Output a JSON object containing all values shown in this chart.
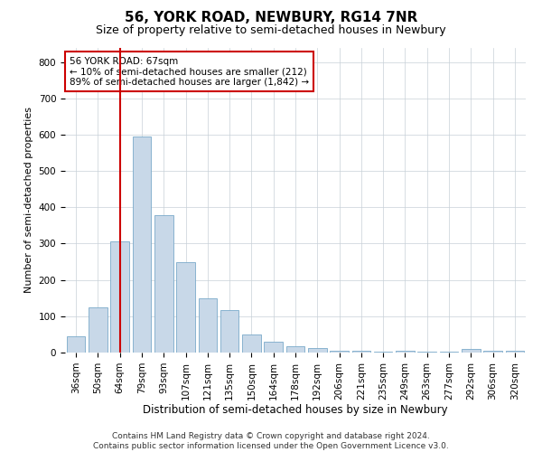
{
  "title": "56, YORK ROAD, NEWBURY, RG14 7NR",
  "subtitle": "Size of property relative to semi-detached houses in Newbury",
  "xlabel": "Distribution of semi-detached houses by size in Newbury",
  "ylabel": "Number of semi-detached properties",
  "footer_line1": "Contains HM Land Registry data © Crown copyright and database right 2024.",
  "footer_line2": "Contains public sector information licensed under the Open Government Licence v3.0.",
  "annotation_title": "56 YORK ROAD: 67sqm",
  "annotation_line1": "← 10% of semi-detached houses are smaller (212)",
  "annotation_line2": "89% of semi-detached houses are larger (1,842) →",
  "property_line_x": 2,
  "bar_color": "#c8d8e8",
  "bar_edge_color": "#7aaaca",
  "property_line_color": "#cc0000",
  "annotation_box_color": "#cc0000",
  "grid_color": "#c8d0d8",
  "background_color": "#ffffff",
  "categories": [
    "36sqm",
    "50sqm",
    "64sqm",
    "79sqm",
    "93sqm",
    "107sqm",
    "121sqm",
    "135sqm",
    "150sqm",
    "164sqm",
    "178sqm",
    "192sqm",
    "206sqm",
    "221sqm",
    "235sqm",
    "249sqm",
    "263sqm",
    "277sqm",
    "292sqm",
    "306sqm",
    "320sqm"
  ],
  "values": [
    45,
    125,
    305,
    595,
    378,
    248,
    150,
    118,
    50,
    30,
    18,
    12,
    5,
    5,
    3,
    5,
    2,
    2,
    10,
    5,
    5
  ],
  "ylim": [
    0,
    840
  ],
  "yticks": [
    0,
    100,
    200,
    300,
    400,
    500,
    600,
    700,
    800
  ],
  "title_fontsize": 11,
  "subtitle_fontsize": 9,
  "xlabel_fontsize": 8.5,
  "ylabel_fontsize": 8,
  "tick_fontsize": 7.5,
  "annotation_fontsize": 7.5,
  "footer_fontsize": 6.5
}
